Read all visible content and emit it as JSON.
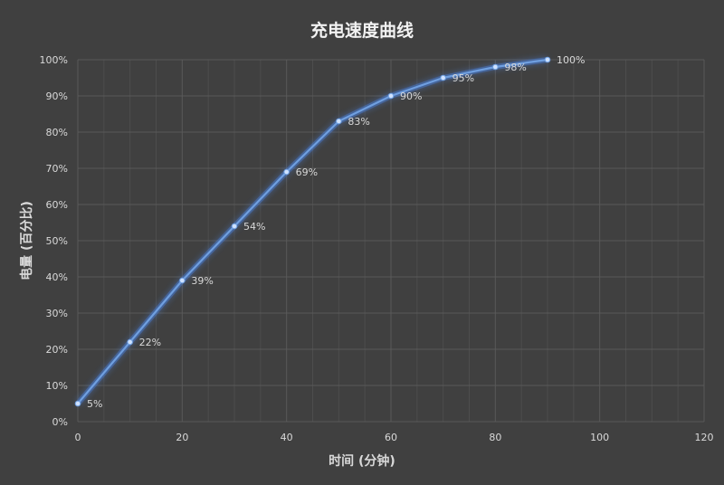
{
  "chart_data": {
    "type": "line",
    "title": "充电速度曲线",
    "xlabel": "时间 (分钟)",
    "ylabel": "电量 (百分比)",
    "xlim": [
      0,
      120
    ],
    "ylim": [
      0,
      100
    ],
    "x_ticks": [
      "0",
      "20",
      "40",
      "60",
      "80",
      "100",
      "120"
    ],
    "y_ticks": [
      "0%",
      "10%",
      "20%",
      "30%",
      "40%",
      "50%",
      "60%",
      "70%",
      "80%",
      "90%",
      "100%"
    ],
    "grid": true,
    "legend": "none",
    "series": [
      {
        "x": [
          0,
          10,
          20,
          30,
          40,
          50,
          60,
          70,
          80,
          90
        ],
        "values": [
          5,
          22,
          39,
          54,
          69,
          83,
          90,
          95,
          98,
          100
        ],
        "labels": [
          "5%",
          "22%",
          "39%",
          "54%",
          "69%",
          "83%",
          "90%",
          "95%",
          "98%",
          "100%"
        ]
      }
    ],
    "colors": {
      "background": "#404040",
      "line": "#6f9fe0",
      "glow": "#4a7fd6",
      "grid": "#595959",
      "minor_grid": "#4d4d4d",
      "marker": "#cfe2ff"
    }
  }
}
